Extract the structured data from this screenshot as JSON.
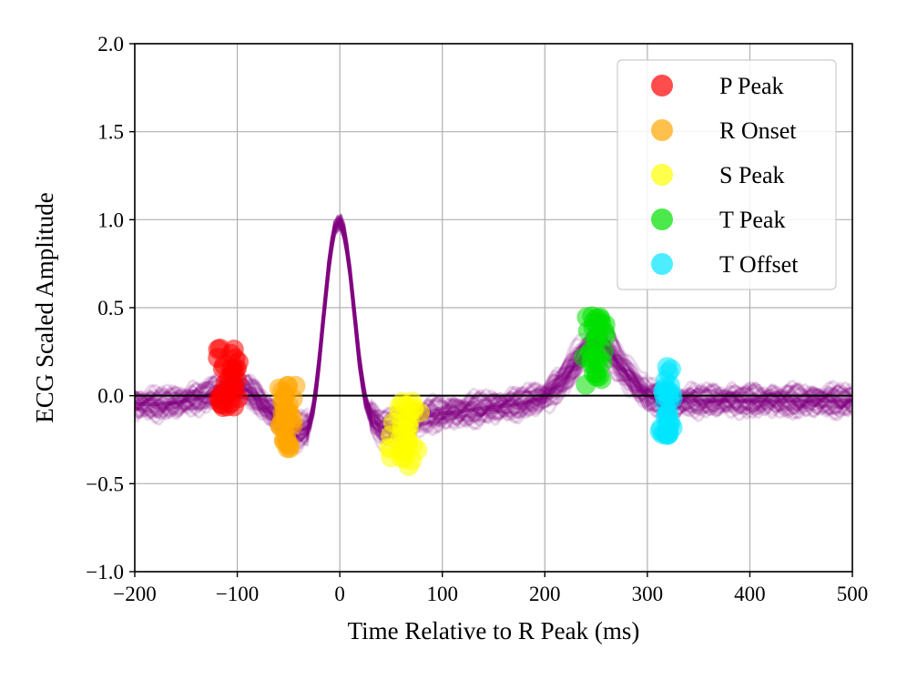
{
  "chart_data": {
    "type": "line",
    "title": "",
    "xlabel": "Time Relative to R Peak (ms)",
    "ylabel": "ECG Scaled Amplitude",
    "xlim": [
      -200,
      500
    ],
    "ylim": [
      -1.0,
      2.0
    ],
    "x_ticks": [
      -200,
      -100,
      0,
      100,
      200,
      300,
      400,
      500
    ],
    "x_tick_labels": [
      "−200",
      "−100",
      "0",
      "100",
      "200",
      "300",
      "400",
      "500"
    ],
    "y_ticks": [
      -1.0,
      -0.5,
      0.0,
      0.5,
      1.0,
      1.5,
      2.0
    ],
    "y_tick_labels": [
      "−1.0",
      "−0.5",
      "0.0",
      "0.5",
      "1.0",
      "1.5",
      "2.0"
    ],
    "grid": true,
    "zero_line": 0.0,
    "legend_position": "top-right",
    "mean_beat": {
      "color": "#800080",
      "x": [
        -200,
        -180,
        -160,
        -140,
        -120,
        -110,
        -100,
        -90,
        -80,
        -70,
        -60,
        -50,
        -40,
        -30,
        -25,
        -20,
        -15,
        -10,
        -5,
        0,
        5,
        10,
        15,
        20,
        25,
        30,
        40,
        50,
        60,
        70,
        80,
        90,
        100,
        120,
        140,
        160,
        180,
        200,
        210,
        220,
        230,
        240,
        250,
        260,
        270,
        280,
        290,
        300,
        310,
        320,
        330,
        340,
        360,
        380,
        400,
        420,
        440,
        460,
        480,
        500
      ],
      "y": [
        -0.05,
        -0.05,
        -0.04,
        -0.02,
        0.02,
        0.04,
        0.05,
        0.03,
        -0.02,
        -0.08,
        -0.13,
        -0.17,
        -0.2,
        -0.18,
        -0.05,
        0.2,
        0.5,
        0.78,
        0.95,
        1.0,
        0.92,
        0.7,
        0.42,
        0.15,
        -0.03,
        -0.12,
        -0.18,
        -0.18,
        -0.16,
        -0.14,
        -0.12,
        -0.11,
        -0.1,
        -0.09,
        -0.07,
        -0.06,
        -0.04,
        -0.01,
        0.04,
        0.1,
        0.18,
        0.26,
        0.3,
        0.28,
        0.2,
        0.12,
        0.05,
        0.0,
        -0.02,
        -0.04,
        -0.04,
        -0.03,
        -0.03,
        -0.03,
        -0.03,
        -0.03,
        -0.03,
        -0.03,
        -0.03,
        -0.03
      ]
    },
    "series": [
      {
        "name": "P Peak",
        "color": "#ff0000",
        "x_center": -108,
        "x_spread": 12,
        "y_min": -0.08,
        "y_max": 0.27
      },
      {
        "name": "R Onset",
        "color": "#ffa500",
        "x_center": -52,
        "x_spread": 10,
        "y_min": -0.3,
        "y_max": 0.07
      },
      {
        "name": "S Peak",
        "color": "#ffff00",
        "x_center": 62,
        "x_spread": 18,
        "y_min": -0.43,
        "y_max": -0.02
      },
      {
        "name": "T Peak",
        "color": "#00e000",
        "x_center": 250,
        "x_spread": 12,
        "y_min": 0.0,
        "y_max": 0.46
      },
      {
        "name": "T Offset",
        "color": "#00e5ff",
        "x_center": 320,
        "x_spread": 8,
        "y_min": -0.23,
        "y_max": 0.2
      }
    ]
  }
}
